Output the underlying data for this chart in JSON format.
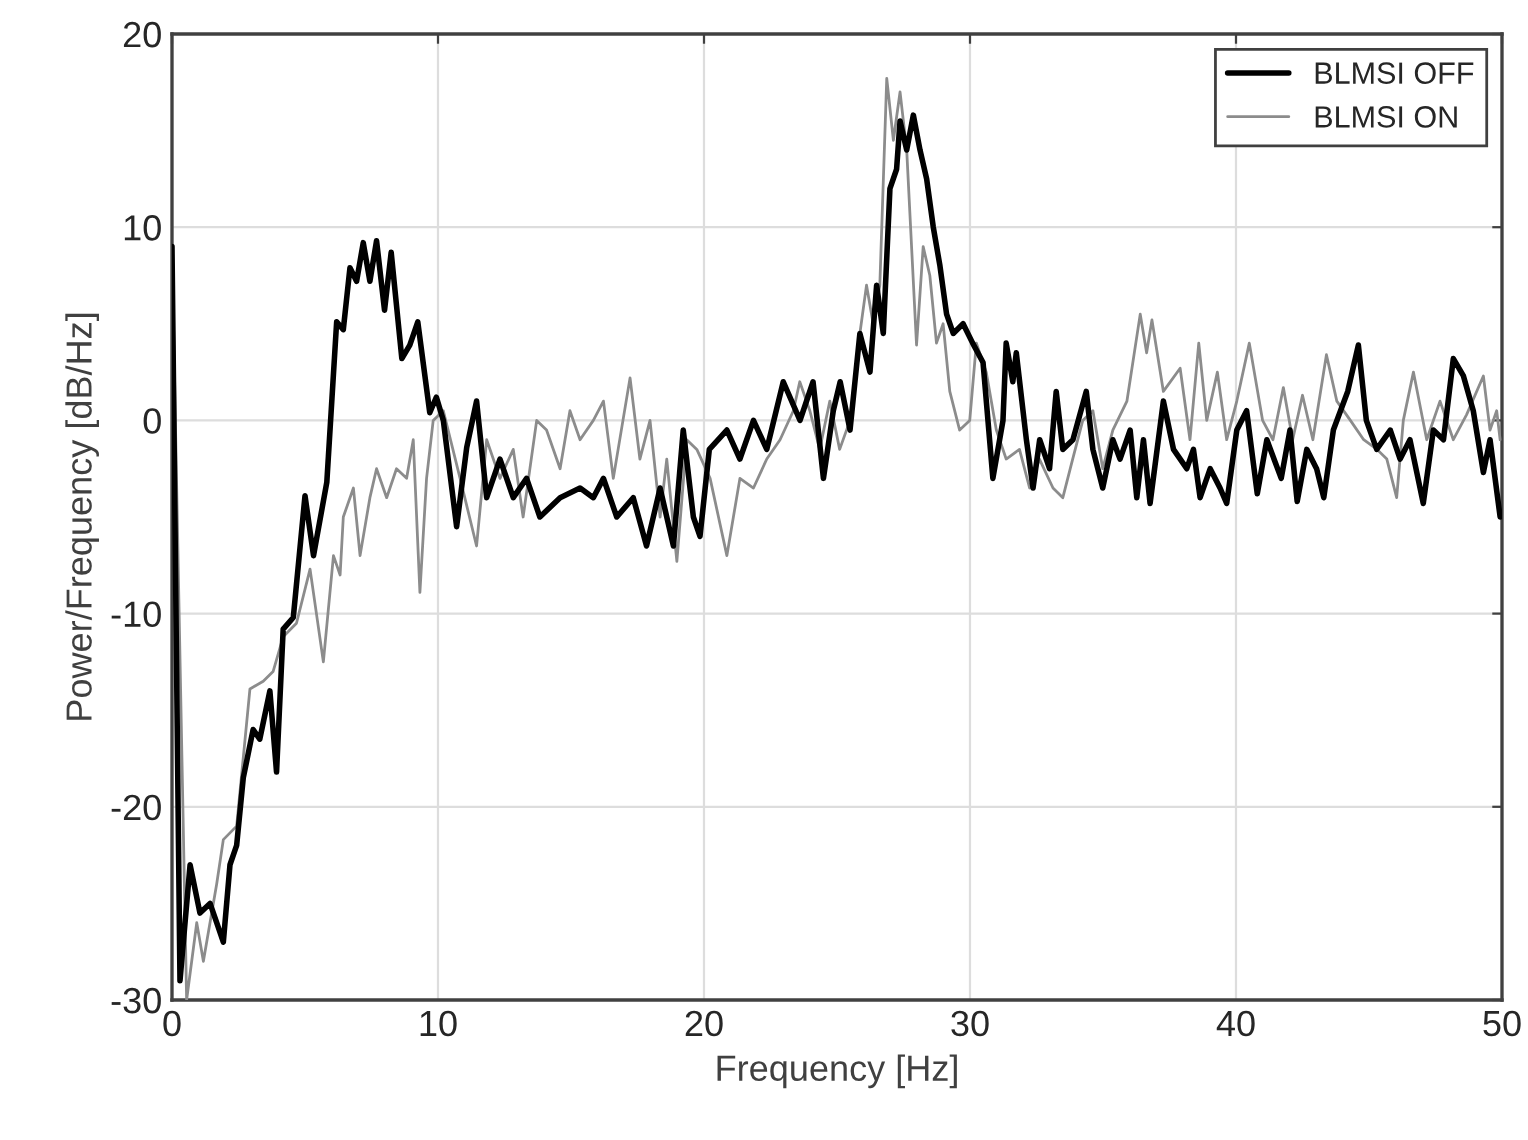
{
  "chart_data": {
    "type": "line",
    "xlabel": "Frequency [Hz]",
    "ylabel": "Power/Frequency [dB/Hz]",
    "xlim": [
      0,
      50
    ],
    "ylim": [
      -30,
      20
    ],
    "xticks": [
      0,
      10,
      20,
      30,
      40,
      50
    ],
    "yticks": [
      -30,
      -20,
      -10,
      0,
      10,
      20
    ],
    "grid": true,
    "legend": "top right",
    "line_style": "solid",
    "marker": "none",
    "series": [
      {
        "name": "BLMSI OFF",
        "color": "#000000",
        "x": [
          0,
          0.3,
          0.68,
          1.05,
          1.43,
          1.68,
          1.93,
          2.18,
          2.43,
          2.68,
          3.05,
          3.3,
          3.68,
          3.93,
          4.18,
          4.56,
          5.0,
          5.32,
          5.82,
          6.19,
          6.44,
          6.69,
          6.94,
          7.19,
          7.44,
          7.69,
          7.99,
          8.24,
          8.64,
          8.94,
          9.24,
          9.69,
          9.94,
          10.2,
          10.7,
          11.08,
          11.45,
          11.83,
          12.33,
          12.83,
          13.33,
          13.83,
          14.59,
          15.34,
          15.84,
          16.22,
          16.72,
          17.34,
          17.84,
          18.35,
          18.85,
          19.22,
          19.6,
          19.85,
          20.2,
          20.86,
          21.35,
          21.86,
          22.36,
          22.98,
          23.61,
          24.1,
          24.49,
          24.86,
          25.12,
          25.49,
          25.86,
          26.24,
          26.49,
          26.74,
          26.99,
          27.24,
          27.37,
          27.62,
          27.87,
          28.12,
          28.37,
          28.62,
          28.87,
          29.12,
          29.37,
          29.74,
          30.1,
          30.49,
          30.86,
          31.24,
          31.36,
          31.61,
          31.74,
          32.12,
          32.37,
          32.62,
          32.99,
          33.24,
          33.49,
          33.87,
          34.37,
          34.62,
          34.99,
          35.37,
          35.64,
          36.02,
          36.27,
          36.52,
          36.77,
          37.27,
          37.65,
          38.15,
          38.4,
          38.65,
          39.03,
          39.4,
          39.65,
          40.03,
          40.4,
          40.8,
          41.16,
          41.7,
          42.03,
          42.3,
          42.66,
          43.03,
          43.3,
          43.66,
          44.2,
          44.6,
          44.9,
          45.29,
          45.8,
          46.17,
          46.54,
          47.04,
          47.42,
          47.8,
          48.17,
          48.55,
          48.92,
          49.3,
          49.55,
          49.93
        ],
        "values": [
          9,
          -29,
          -23,
          -25.5,
          -25,
          -26,
          -27,
          -23,
          -22,
          -18.5,
          -16,
          -16.5,
          -14,
          -18.2,
          -10.8,
          -10.2,
          -3.9,
          -7,
          -3.2,
          5.1,
          4.7,
          7.9,
          7.2,
          9.2,
          7.2,
          9.3,
          5.7,
          8.7,
          3.2,
          3.9,
          5.1,
          0.4,
          1.2,
          0,
          -5.5,
          -1.4,
          1.0,
          -4,
          -2,
          -4,
          -3,
          -5,
          -4,
          -3.5,
          -4,
          -3,
          -5,
          -4,
          -6.5,
          -3.5,
          -6.5,
          -0.5,
          -5,
          -6,
          -1.5,
          -0.5,
          -2,
          0,
          -1.5,
          2,
          0,
          2,
          -3,
          0.5,
          2,
          -0.5,
          4.5,
          2.5,
          7,
          4.5,
          12,
          13,
          15.5,
          14,
          15.8,
          14,
          12.5,
          10,
          8,
          5.5,
          4.5,
          5,
          4,
          3,
          -3,
          0,
          4,
          2,
          3.5,
          -1,
          -3.5,
          -1,
          -2.5,
          1.5,
          -1.5,
          -1,
          1.5,
          -1.5,
          -3.5,
          -1,
          -2,
          -0.5,
          -4,
          -1,
          -4.3,
          1,
          -1.5,
          -2.5,
          -1.5,
          -4,
          -2.5,
          -3.5,
          -4.3,
          -0.5,
          0.5,
          -3.8,
          -1,
          -3,
          -0.5,
          -4.2,
          -1.5,
          -2.5,
          -4,
          -0.5,
          1.5,
          3.9,
          0,
          -1.5,
          -0.5,
          -2,
          -1,
          -4.3,
          -0.5,
          -1,
          3.2,
          2.3,
          0.5,
          -2.7,
          -1,
          -5
        ]
      },
      {
        "name": "BLMSI ON",
        "color": "#8c8c8c",
        "x": [
          0,
          0.55,
          0.93,
          1.18,
          1.68,
          1.93,
          2.43,
          2.93,
          3.43,
          3.8,
          4.18,
          4.68,
          5.19,
          5.69,
          6.07,
          6.32,
          6.44,
          6.82,
          7.07,
          7.44,
          7.69,
          8.07,
          8.44,
          8.82,
          9.07,
          9.32,
          9.57,
          9.82,
          10.2,
          10.83,
          11.45,
          11.83,
          12.33,
          12.83,
          13.2,
          13.71,
          14.08,
          14.59,
          14.96,
          15.34,
          15.84,
          16.22,
          16.59,
          17.22,
          17.59,
          17.97,
          18.35,
          18.6,
          18.98,
          19.35,
          19.73,
          20.23,
          20.86,
          21.35,
          21.86,
          22.36,
          22.86,
          23.36,
          23.6,
          23.98,
          24.35,
          24.73,
          25.1,
          25.49,
          25.86,
          26.11,
          26.36,
          26.61,
          26.87,
          27.12,
          27.37,
          27.62,
          27.99,
          28.24,
          28.49,
          28.74,
          28.99,
          29.24,
          29.61,
          29.99,
          30.24,
          30.61,
          30.99,
          31.36,
          31.86,
          32.24,
          32.61,
          33.12,
          33.49,
          33.86,
          34.24,
          34.62,
          34.99,
          35.37,
          35.9,
          36.4,
          36.64,
          36.84,
          37.27,
          37.9,
          38.27,
          38.6,
          38.9,
          39.3,
          39.65,
          40.03,
          40.5,
          41.0,
          41.39,
          41.78,
          42.13,
          42.5,
          42.89,
          43.4,
          43.79,
          44.3,
          44.8,
          45.3,
          45.67,
          46.04,
          46.29,
          46.67,
          47.17,
          47.67,
          48.17,
          48.67,
          49.3,
          49.55,
          49.8,
          49.93
        ],
        "values": [
          9,
          -30,
          -26,
          -28,
          -24,
          -21.7,
          -21,
          -13.9,
          -13.5,
          -13,
          -11.2,
          -10.5,
          -7.7,
          -12.5,
          -7,
          -8,
          -5,
          -3.5,
          -7,
          -4,
          -2.5,
          -4,
          -2.5,
          -3,
          -1,
          -8.9,
          -3,
          0,
          0.5,
          -3,
          -6.5,
          -1,
          -3,
          -1.5,
          -5,
          0,
          -0.5,
          -2.5,
          0.5,
          -1,
          0,
          1,
          -3,
          2.2,
          -2,
          0,
          -5,
          -2,
          -7.3,
          -1,
          -1.5,
          -3,
          -7,
          -3,
          -3.5,
          -2,
          -1,
          0.5,
          2,
          0.5,
          -1.5,
          1,
          -1.5,
          0,
          4.5,
          7,
          5,
          7,
          17.7,
          14.5,
          17,
          14,
          3.9,
          9,
          7.5,
          4,
          5,
          1.5,
          -0.5,
          0,
          4,
          2.5,
          -0.5,
          -2,
          -1.5,
          -3.5,
          -2,
          -3.5,
          -4,
          -2,
          0,
          0.5,
          -2.5,
          -0.5,
          1,
          5.5,
          3.5,
          5.2,
          1.5,
          2.7,
          -1,
          4,
          0,
          2.5,
          -1,
          1,
          4,
          0,
          -1,
          1.7,
          -1,
          1.3,
          -1,
          3.4,
          1,
          0,
          -1,
          -1.5,
          -2,
          -4,
          0,
          2.5,
          -1,
          1,
          -1,
          0.3,
          2.3,
          -0.5,
          0.5,
          -1
        ]
      }
    ]
  }
}
